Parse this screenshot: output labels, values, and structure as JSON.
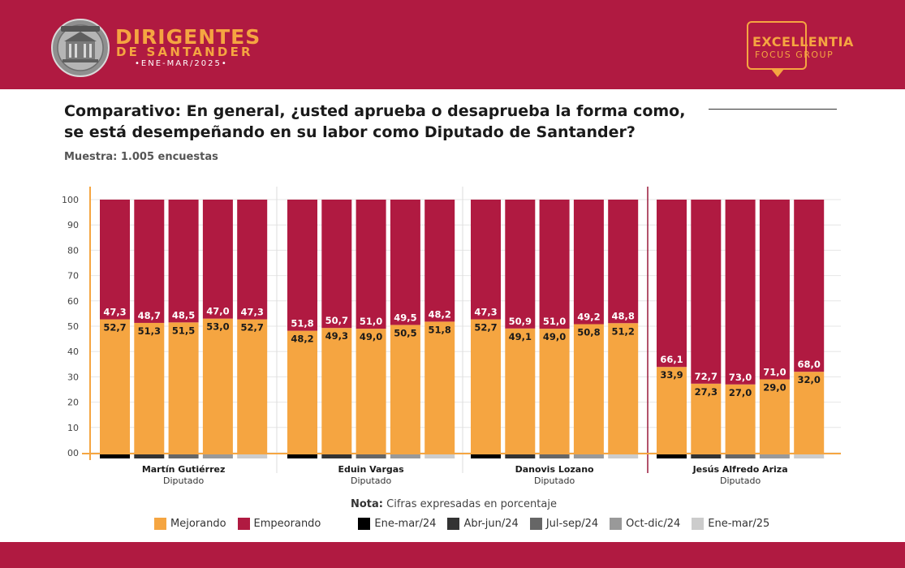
{
  "header": {
    "brand_title": "DIRIGENTES",
    "brand_subtitle": "DE SANTANDER",
    "brand_period": "•ENE-MAR/2025•",
    "partner_title": "EXCELLENTIA",
    "partner_subtitle": "FOCUS GROUP"
  },
  "question": {
    "title_line1": "Comparativo: En general, ¿usted aprueba o desaprueba la forma como,",
    "title_line2": "se está desempeñando en su labor como Diputado de Santander?",
    "sample": "Muestra: 1.005 encuestas"
  },
  "note": {
    "label": "Nota:",
    "text": "Cifras expresadas en porcentaje"
  },
  "colors": {
    "mejorando": "#f5a541",
    "empeorando": "#b01a41",
    "periods": [
      "#000000",
      "#333333",
      "#666666",
      "#999999",
      "#cccccc"
    ]
  },
  "chart_data": {
    "type": "bar",
    "stacked": true,
    "yticks": [
      "00",
      "10",
      "20",
      "30",
      "40",
      "50",
      "60",
      "70",
      "80",
      "90",
      "100"
    ],
    "ylim": [
      0,
      100
    ],
    "grid": true,
    "legend_position": "bottom",
    "series_names": [
      "Mejorando",
      "Empeorando"
    ],
    "periods": [
      "Ene-mar/24",
      "Abr-jun/24",
      "Jul-sep/24",
      "Oct-dic/24",
      "Ene-mar/25"
    ],
    "groups": [
      {
        "name": "Martín Gutiérrez",
        "role": "Diputado",
        "mejorando": [
          52.7,
          51.3,
          51.5,
          53.0,
          52.7
        ],
        "empeorando": [
          47.3,
          48.7,
          48.5,
          47.0,
          47.3
        ],
        "mejorando_labels": [
          "52,7",
          "51,3",
          "51,5",
          "53,0",
          "52,7"
        ],
        "empeorando_labels": [
          "47,3",
          "48,7",
          "48,5",
          "47,0",
          "47,3"
        ]
      },
      {
        "name": "Eduin Vargas",
        "role": "Diputado",
        "mejorando": [
          48.2,
          49.3,
          49.0,
          50.5,
          51.8
        ],
        "empeorando": [
          51.8,
          50.7,
          51.0,
          49.5,
          48.2
        ],
        "mejorando_labels": [
          "48,2",
          "49,3",
          "49,0",
          "50,5",
          "51,8"
        ],
        "empeorando_labels": [
          "51,8",
          "50,7",
          "51,0",
          "49,5",
          "48,2"
        ]
      },
      {
        "name": "Danovis Lozano",
        "role": "Diputado",
        "mejorando": [
          52.7,
          49.1,
          49.0,
          50.8,
          51.2
        ],
        "empeorando": [
          47.3,
          50.9,
          51.0,
          49.2,
          48.8
        ],
        "mejorando_labels": [
          "52,7",
          "49,1",
          "49,0",
          "50,8",
          "51,2"
        ],
        "empeorando_labels": [
          "47,3",
          "50,9",
          "51,0",
          "49,2",
          "48,8"
        ]
      },
      {
        "name": "Jesús Alfredo Ariza",
        "role": "Diputado",
        "mejorando": [
          33.9,
          27.3,
          27.0,
          29.0,
          32.0
        ],
        "empeorando": [
          66.1,
          72.7,
          73.0,
          71.0,
          68.0
        ],
        "mejorando_labels": [
          "33,9",
          "27,3",
          "27,0",
          "29,0",
          "32,0"
        ],
        "empeorando_labels": [
          "66,1",
          "72,7",
          "73,0",
          "71,0",
          "68,0"
        ]
      }
    ]
  }
}
